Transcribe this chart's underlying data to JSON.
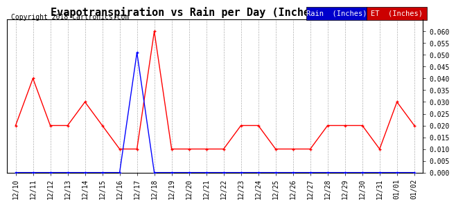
{
  "title": "Evapotranspiration vs Rain per Day (Inches) 20180103",
  "copyright": "Copyright 2018 Cartronics.com",
  "labels": [
    "12/10",
    "12/11",
    "12/12",
    "12/13",
    "12/14",
    "12/15",
    "12/16",
    "12/17",
    "12/18",
    "12/19",
    "12/20",
    "12/21",
    "12/22",
    "12/23",
    "12/24",
    "12/25",
    "12/26",
    "12/27",
    "12/28",
    "12/29",
    "12/30",
    "12/31",
    "01/01",
    "01/02"
  ],
  "rain": [
    0.0,
    0.0,
    0.0,
    0.0,
    0.0,
    0.0,
    0.0,
    0.051,
    0.0,
    0.0,
    0.0,
    0.0,
    0.0,
    0.0,
    0.0,
    0.0,
    0.0,
    0.0,
    0.0,
    0.0,
    0.0,
    0.0,
    0.0,
    0.0
  ],
  "et": [
    0.02,
    0.04,
    0.02,
    0.02,
    0.03,
    0.02,
    0.01,
    0.01,
    0.06,
    0.01,
    0.01,
    0.01,
    0.01,
    0.02,
    0.02,
    0.01,
    0.01,
    0.01,
    0.02,
    0.02,
    0.02,
    0.01,
    0.03,
    0.02
  ],
  "rain_color": "#0000ff",
  "et_color": "#ff0000",
  "background_color": "#ffffff",
  "grid_color": "#b0b0b0",
  "ylim": [
    0.0,
    0.065
  ],
  "yticks": [
    0.0,
    0.005,
    0.01,
    0.015,
    0.02,
    0.025,
    0.03,
    0.035,
    0.04,
    0.045,
    0.05,
    0.055,
    0.06
  ],
  "title_fontsize": 11,
  "copyright_fontsize": 7,
  "tick_fontsize": 7,
  "legend_fontsize": 7.5,
  "linewidth": 1.0,
  "markersize": 3
}
